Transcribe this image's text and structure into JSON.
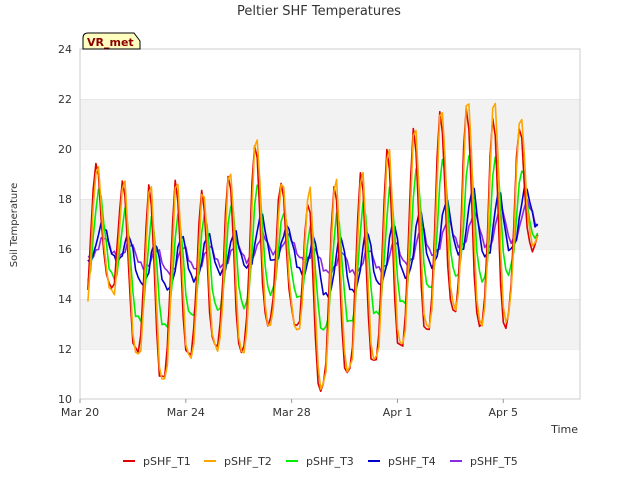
{
  "chart_data": {
    "type": "line",
    "title": "Peltier SHF Temperatures",
    "xlabel": "Time",
    "ylabel": "Soil Temperature",
    "badge": "VR_met",
    "ylim": [
      10,
      24
    ],
    "xlim": [
      0,
      18.9
    ],
    "x_unit_note": "days from Mar 20",
    "y_ticks": [
      10,
      12,
      14,
      16,
      18,
      20,
      22,
      24
    ],
    "x_ticks": [
      {
        "value": 0,
        "label": "Mar 20"
      },
      {
        "value": 4,
        "label": "Mar 24"
      },
      {
        "value": 8,
        "label": "Mar 28"
      },
      {
        "value": 12,
        "label": "Apr 1"
      },
      {
        "value": 16,
        "label": "Apr 5"
      }
    ],
    "grid": "horizontal bands",
    "legend_position": "bottom",
    "x_start": 0.3,
    "x_end": 17.3,
    "step": 0.1,
    "series": [
      {
        "name": "pSHF_T1",
        "color": "#e00000",
        "daily_min": [
          13.1,
          14.9,
          12.1,
          10.7,
          11.7,
          12.2,
          11.8,
          13.0,
          13.4,
          10.3,
          11.0,
          11.4,
          12.0,
          12.6,
          13.6,
          13.0,
          12.6,
          16.0
        ],
        "daily_max": [
          20.2,
          19.0,
          18.5,
          18.5,
          18.8,
          18.0,
          19.6,
          20.7,
          17.5,
          18.2,
          18.8,
          19.2,
          20.4,
          21.0,
          21.8,
          21.6,
          21.2,
          20.8
        ]
      },
      {
        "name": "pSHF_T2",
        "color": "#ffa500",
        "daily_min": [
          13.0,
          14.8,
          12.0,
          10.6,
          11.6,
          12.1,
          11.7,
          12.9,
          13.3,
          10.4,
          11.1,
          11.5,
          12.1,
          12.7,
          13.8,
          13.1,
          12.7,
          16.2
        ],
        "daily_max": [
          20.2,
          18.9,
          18.7,
          18.6,
          18.9,
          18.1,
          19.8,
          21.0,
          17.6,
          19.0,
          18.8,
          19.3,
          20.5,
          21.2,
          22.0,
          22.2,
          22.1,
          21.0
        ]
      },
      {
        "name": "pSHF_T3",
        "color": "#00ee00",
        "daily_min": [
          14.3,
          15.4,
          13.3,
          12.8,
          13.3,
          13.6,
          13.6,
          14.2,
          14.5,
          12.7,
          13.0,
          13.3,
          13.7,
          14.3,
          15.0,
          14.8,
          14.7,
          16.5
        ],
        "daily_max": [
          18.3,
          18.4,
          17.2,
          17.2,
          17.4,
          17.4,
          18.0,
          19.0,
          16.9,
          17.0,
          17.6,
          17.9,
          18.6,
          19.4,
          19.7,
          19.9,
          19.8,
          19.0
        ]
      },
      {
        "name": "pSHF_T4",
        "color": "#0000cc",
        "daily_min": [
          15.2,
          16.0,
          14.8,
          14.3,
          14.7,
          15.0,
          15.2,
          15.5,
          15.6,
          14.1,
          14.2,
          14.5,
          14.8,
          15.1,
          15.9,
          15.8,
          15.6,
          16.9
        ],
        "daily_max": [
          16.9,
          17.0,
          16.5,
          16.2,
          16.6,
          16.6,
          16.7,
          17.5,
          16.8,
          16.4,
          16.6,
          16.8,
          17.1,
          17.6,
          18.0,
          18.5,
          18.3,
          18.5
        ]
      },
      {
        "name": "pSHF_T5",
        "color": "#8a2be2",
        "daily_min": [
          15.5,
          15.9,
          15.5,
          15.0,
          15.2,
          15.3,
          15.4,
          15.8,
          15.9,
          15.1,
          15.0,
          15.1,
          15.3,
          15.6,
          16.1,
          16.2,
          16.0,
          16.9
        ],
        "daily_max": [
          16.2,
          16.5,
          16.2,
          16.0,
          16.1,
          16.1,
          16.3,
          16.6,
          16.5,
          15.9,
          15.9,
          16.0,
          16.3,
          16.9,
          17.2,
          17.5,
          17.8,
          17.9
        ]
      }
    ]
  }
}
